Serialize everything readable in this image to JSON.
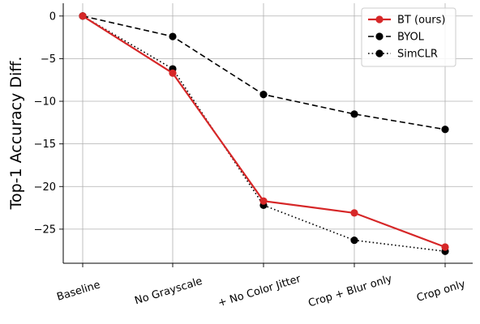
{
  "chart_data": {
    "type": "line",
    "categories": [
      "Baseline",
      "No Grayscale",
      "+ No Color Jitter",
      "Crop + Blur only",
      "Crop only"
    ],
    "ylabel": "Top-1 Accuracy Diff.",
    "xlabel": "",
    "title": "",
    "ylim": [
      -29,
      1.5
    ],
    "yticks": [
      0,
      -5,
      -10,
      -15,
      -20,
      -25
    ],
    "ytick_labels": [
      "0",
      "−5",
      "−10",
      "−15",
      "−20",
      "−25"
    ],
    "grid": true,
    "legend_position": "top-right",
    "series": [
      {
        "name": "BT (ours)",
        "values": [
          0,
          -6.7,
          -21.7,
          -23.1,
          -27.1
        ],
        "color": "#d62728",
        "style": "solid",
        "marker": "circle"
      },
      {
        "name": "BYOL",
        "values": [
          0,
          -2.4,
          -9.2,
          -11.5,
          -13.3
        ],
        "color": "#000000",
        "style": "dashed",
        "marker": "circle"
      },
      {
        "name": "SimCLR",
        "values": [
          0,
          -6.2,
          -22.2,
          -26.3,
          -27.6
        ],
        "color": "#000000",
        "style": "dotted",
        "marker": "circle"
      }
    ]
  }
}
